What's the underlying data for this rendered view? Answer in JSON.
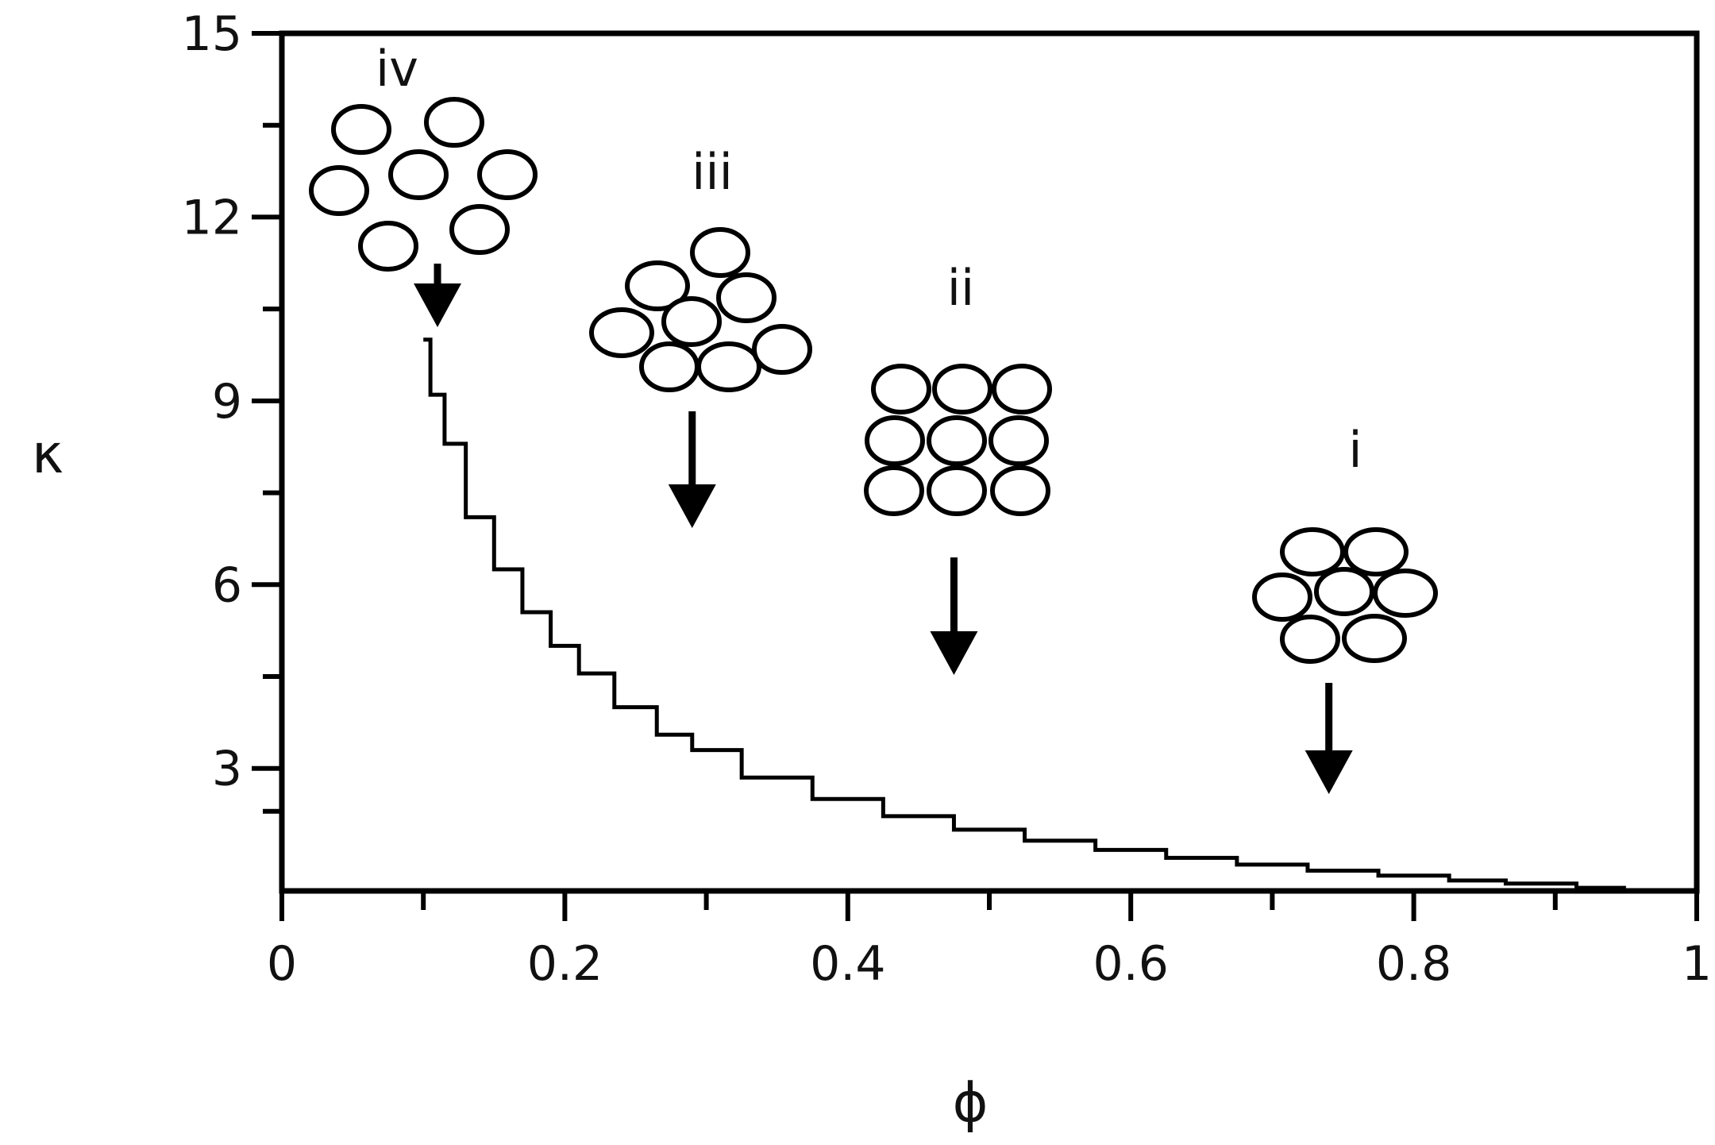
{
  "chart_data": {
    "type": "line",
    "title": "",
    "xlabel": "ϕ",
    "ylabel": "κ",
    "xlim": [
      0,
      1
    ],
    "ylim": [
      1,
      15
    ],
    "grid": false,
    "x_ticks": [
      "0",
      "0.2",
      "0.4",
      "0.6",
      "0.8",
      "1"
    ],
    "y_ticks": [
      "3",
      "6",
      "9",
      "12",
      "15"
    ],
    "series": [
      {
        "name": "",
        "color": "#000000",
        "line_style": "step",
        "x": [
          0.1,
          0.11,
          0.12,
          0.14,
          0.16,
          0.18,
          0.2,
          0.22,
          0.25,
          0.28,
          0.3,
          0.35,
          0.4,
          0.45,
          0.5,
          0.55,
          0.6,
          0.65,
          0.7,
          0.75,
          0.8,
          0.85,
          0.88,
          0.95
        ],
        "y": [
          10.0,
          9.1,
          8.3,
          7.1,
          6.25,
          5.55,
          5.0,
          4.55,
          4.0,
          3.55,
          3.3,
          2.85,
          2.5,
          2.22,
          2.0,
          1.82,
          1.67,
          1.54,
          1.43,
          1.33,
          1.25,
          1.17,
          1.12,
          1.05
        ]
      }
    ],
    "annotations": [
      {
        "label": "iv",
        "arrow_target_x": 0.11,
        "packing": "sparse"
      },
      {
        "label": "iii",
        "arrow_target_x": 0.29,
        "packing": "loose"
      },
      {
        "label": "ii",
        "arrow_target_x": 0.475,
        "packing": "square"
      },
      {
        "label": "i",
        "arrow_target_x": 0.74,
        "packing": "hexagonal"
      }
    ]
  }
}
